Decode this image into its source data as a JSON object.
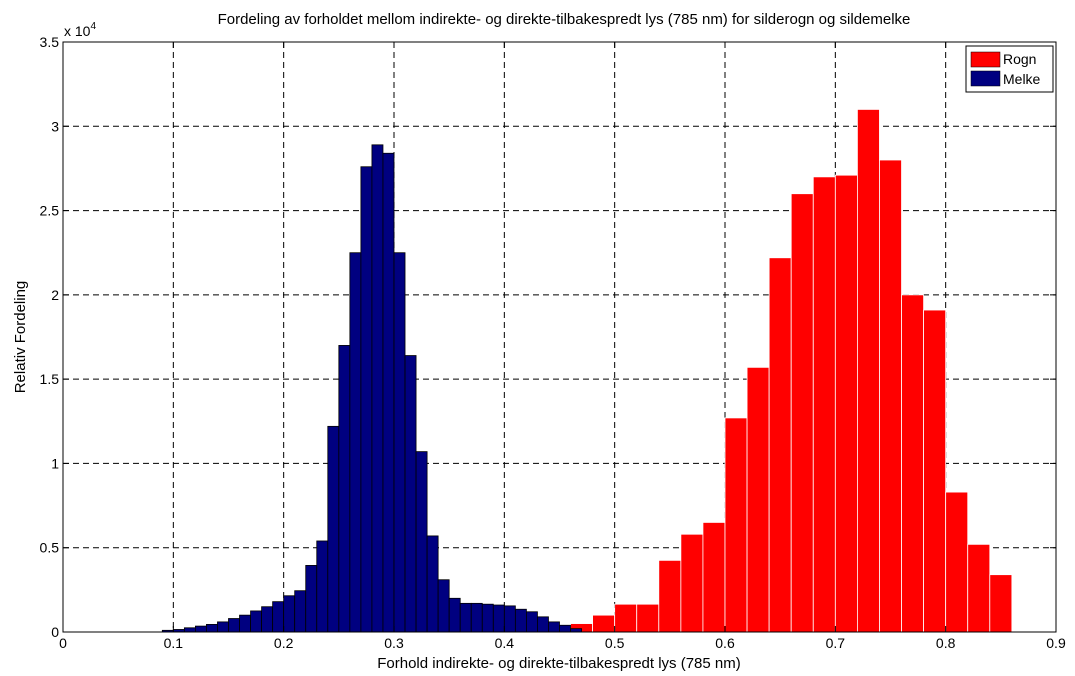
{
  "chart_data": {
    "type": "bar",
    "title": "Fordeling av forholdet mellom indirekte- og direkte-tilbakespredt lys (785 nm) for silderogn og sildemelke",
    "xlabel": "Forhold indirekte- og direkte-tilbakespredt lys (785 nm)",
    "ylabel": "Relativ Fordeling",
    "y_exponent_label": "x 10",
    "y_exponent_power": "4",
    "xlim": [
      0,
      0.9
    ],
    "ylim": [
      0,
      35000
    ],
    "x_ticks": [
      "0",
      "0.1",
      "0.2",
      "0.3",
      "0.4",
      "0.5",
      "0.6",
      "0.7",
      "0.8",
      "0.9"
    ],
    "y_ticks": [
      "0",
      "0.5",
      "1",
      "1.5",
      "2",
      "2.5",
      "3",
      "3.5"
    ],
    "grid": true,
    "legend_position": "top-right",
    "series": [
      {
        "name": "Rogn",
        "color": "#ff0000",
        "edge_color": "#ffffff",
        "bin_width": 0.02,
        "bin_starts": [
          0.44,
          0.46,
          0.48,
          0.5,
          0.52,
          0.54,
          0.56,
          0.58,
          0.6,
          0.62,
          0.64,
          0.66,
          0.68,
          0.7,
          0.72,
          0.74,
          0.76,
          0.78,
          0.8,
          0.82,
          0.84
        ],
        "values": [
          300,
          500,
          1000,
          1650,
          1650,
          4250,
          5800,
          6500,
          12700,
          15700,
          22200,
          26000,
          27000,
          27100,
          31000,
          28000,
          20000,
          19100,
          8300,
          5200,
          3400
        ]
      },
      {
        "name": "Melke",
        "color": "#000080",
        "edge_color": "#000000",
        "bin_width": 0.01,
        "bin_starts": [
          0.09,
          0.1,
          0.11,
          0.12,
          0.13,
          0.14,
          0.15,
          0.16,
          0.17,
          0.18,
          0.19,
          0.2,
          0.21,
          0.22,
          0.23,
          0.24,
          0.25,
          0.26,
          0.27,
          0.28,
          0.29,
          0.3,
          0.31,
          0.32,
          0.33,
          0.34,
          0.35,
          0.36,
          0.37,
          0.38,
          0.39,
          0.4,
          0.41,
          0.42,
          0.43,
          0.44,
          0.45,
          0.46
        ],
        "values": [
          100,
          150,
          250,
          350,
          450,
          600,
          800,
          1000,
          1250,
          1500,
          1800,
          2150,
          2450,
          3950,
          5400,
          12200,
          17000,
          22500,
          27600,
          28900,
          28400,
          22500,
          16400,
          10700,
          5700,
          3100,
          2000,
          1700,
          1700,
          1650,
          1600,
          1550,
          1350,
          1200,
          900,
          600,
          400,
          200
        ]
      }
    ]
  }
}
